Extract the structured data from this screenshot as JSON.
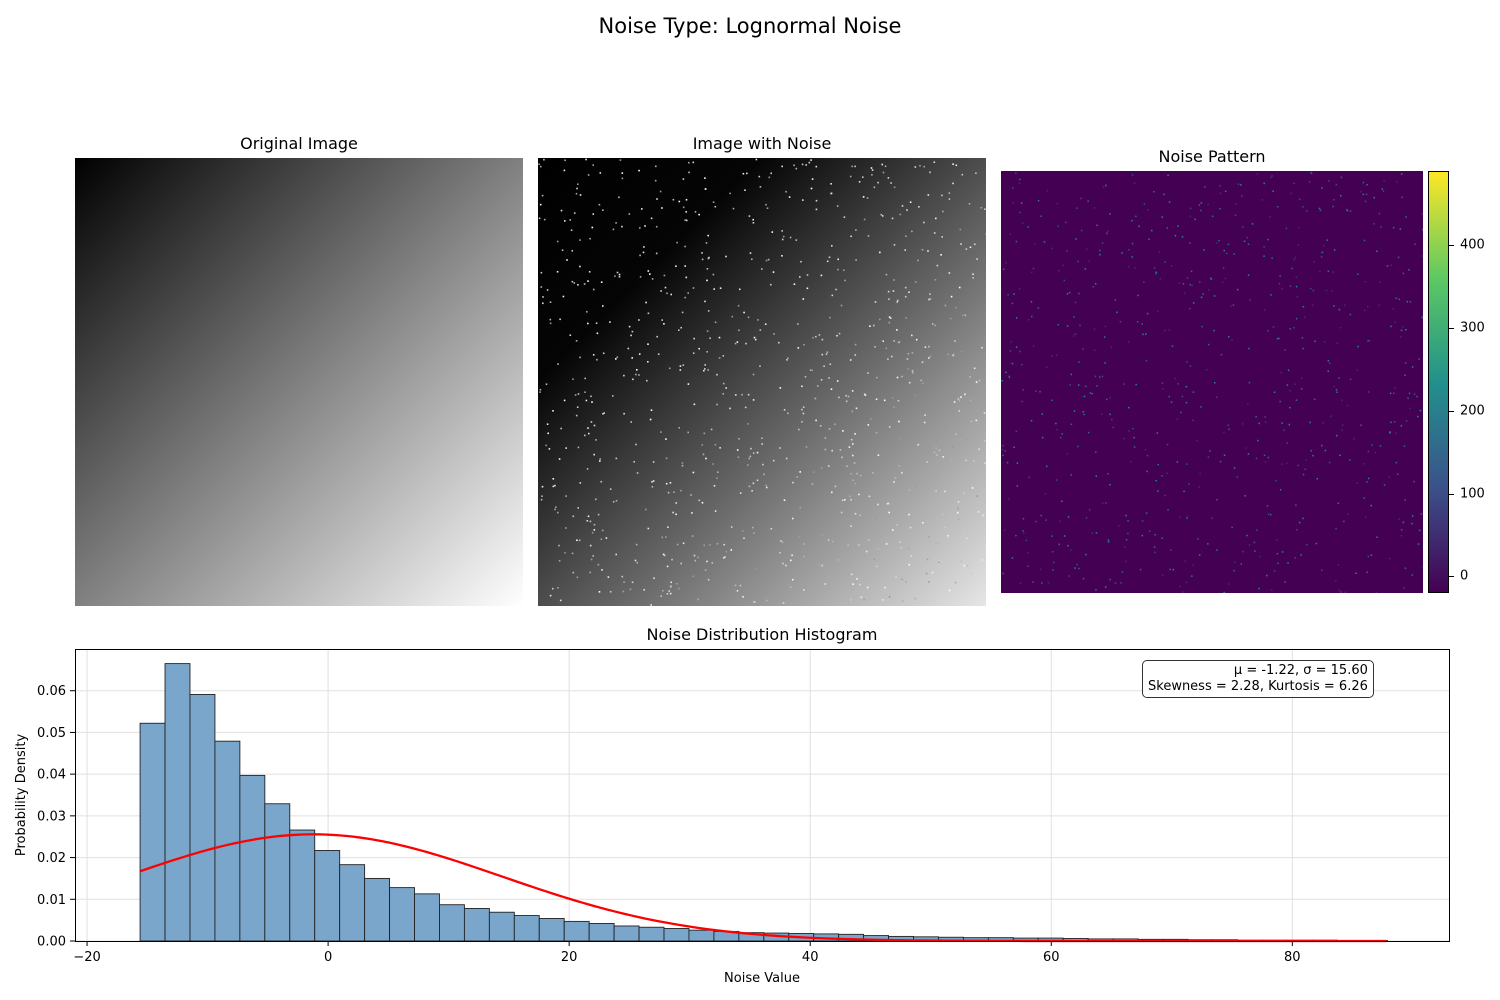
{
  "figure": {
    "title": "Noise Type: Lognormal Noise"
  },
  "panels": {
    "original": {
      "title": "Original Image"
    },
    "noisy": {
      "title": "Image with Noise"
    },
    "pattern": {
      "title": "Noise Pattern"
    }
  },
  "colorbar": {
    "colormap": "viridis",
    "ticks": [
      "0",
      "100",
      "200",
      "300",
      "400"
    ],
    "tick_values": [
      0,
      100,
      200,
      300,
      400
    ],
    "range": [
      -20,
      490
    ]
  },
  "stats": {
    "line1": "μ = -1.22, σ = 15.60",
    "line2": "Skewness = 2.28, Kurtosis = 6.26"
  },
  "chart_data": {
    "type": "bar",
    "title": "Noise Distribution Histogram",
    "xlabel": "Noise Value",
    "ylabel": "Probability Density",
    "xlim": [
      -21,
      93
    ],
    "ylim": [
      0,
      0.07
    ],
    "xticks": [
      -20,
      0,
      20,
      40,
      60,
      80
    ],
    "yticks": [
      0.0,
      0.01,
      0.02,
      0.03,
      0.04,
      0.05,
      0.06
    ],
    "ytick_labels": [
      "0.00",
      "0.01",
      "0.02",
      "0.03",
      "0.04",
      "0.05",
      "0.06"
    ],
    "grid": true,
    "bar_color": "#7aa6cc",
    "bins_start": -15.6,
    "bin_width": 2.07,
    "values": [
      0.0522,
      0.0665,
      0.0591,
      0.0479,
      0.0397,
      0.0329,
      0.0266,
      0.0217,
      0.0183,
      0.015,
      0.0128,
      0.0113,
      0.0087,
      0.0078,
      0.0069,
      0.0061,
      0.0054,
      0.0047,
      0.0042,
      0.0036,
      0.0033,
      0.003,
      0.0026,
      0.0023,
      0.002,
      0.0019,
      0.0018,
      0.0017,
      0.0016,
      0.0013,
      0.0011,
      0.001,
      0.0009,
      0.0008,
      0.0008,
      0.0007,
      0.0007,
      0.0006,
      0.0005,
      0.0005,
      0.0004,
      0.0004,
      0.0003,
      0.0003,
      0.0002,
      0.0002,
      0.0002,
      0.0002,
      0.0001,
      0.0001
    ],
    "fit_curve": {
      "color": "#ff0000",
      "mu": -1.22,
      "sigma": 15.6,
      "x_range": [
        -15.6,
        87.8
      ]
    }
  }
}
